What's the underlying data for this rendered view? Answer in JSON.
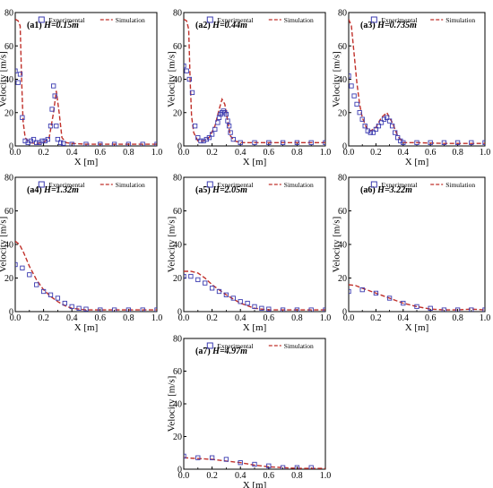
{
  "legend": {
    "exp_label": "Experimental",
    "sim_label": "Simulation"
  },
  "axis_text": {
    "xlabel": "X [m]",
    "ylabel": "Velocity [m/s]"
  },
  "colors": {
    "exp": "#3b3bb0",
    "sim": "#c0302a"
  },
  "chart_data": [
    {
      "type": "scatter",
      "panel": "(a1)",
      "height_label": "H=0.15m",
      "xlabel": "X [m]",
      "ylabel": "Velocity [m/s]",
      "xlim": [
        0,
        1
      ],
      "ylim": [
        0,
        80
      ],
      "xticks": [
        "0.0",
        "0.2",
        "0.4",
        "0.6",
        "0.8",
        "1.0"
      ],
      "yticks": [
        "0",
        "20",
        "40",
        "60",
        "80"
      ],
      "legend_position": "top-right",
      "series": [
        {
          "name": "Experimental",
          "x": [
            0.0,
            0.02,
            0.035,
            0.05,
            0.07,
            0.09,
            0.11,
            0.13,
            0.15,
            0.17,
            0.19,
            0.21,
            0.23,
            0.25,
            0.26,
            0.27,
            0.28,
            0.29,
            0.3,
            0.32,
            0.34,
            0.4,
            0.5,
            0.6,
            0.7,
            0.8,
            0.9,
            1.0
          ],
          "y": [
            45,
            38,
            43,
            17,
            3,
            2,
            3,
            4,
            2,
            2,
            3,
            3,
            4,
            12,
            22,
            36,
            30,
            12,
            4,
            2,
            1.5,
            1,
            1,
            1,
            1,
            1,
            1,
            1
          ]
        },
        {
          "name": "Simulation",
          "x": [
            0.0,
            0.02,
            0.035,
            0.045,
            0.055,
            0.07,
            0.1,
            0.15,
            0.2,
            0.24,
            0.27,
            0.29,
            0.31,
            0.33,
            0.36,
            0.4,
            0.5,
            0.7,
            1.0
          ],
          "y": [
            76,
            75,
            72,
            40,
            15,
            5,
            2,
            1.5,
            2,
            5,
            20,
            33,
            20,
            5,
            2,
            1.5,
            1,
            1,
            1
          ]
        }
      ]
    },
    {
      "type": "scatter",
      "panel": "(a2)",
      "height_label": "H=0.44m",
      "xlabel": "X [m]",
      "ylabel": "Velocity [m/s]",
      "xlim": [
        0,
        1
      ],
      "ylim": [
        0,
        80
      ],
      "xticks": [
        "0.0",
        "0.2",
        "0.4",
        "0.6",
        "0.8",
        "1.0"
      ],
      "yticks": [
        "0",
        "20",
        "40",
        "60",
        "80"
      ],
      "legend_position": "top-right",
      "series": [
        {
          "name": "Experimental",
          "x": [
            0.0,
            0.02,
            0.04,
            0.06,
            0.08,
            0.1,
            0.12,
            0.14,
            0.16,
            0.18,
            0.2,
            0.22,
            0.24,
            0.25,
            0.26,
            0.27,
            0.28,
            0.29,
            0.3,
            0.31,
            0.32,
            0.33,
            0.35,
            0.4,
            0.5,
            0.6,
            0.7,
            0.8,
            0.9,
            1.0
          ],
          "y": [
            48,
            45,
            40,
            32,
            12,
            5,
            3,
            3,
            4,
            5,
            7,
            10,
            14,
            17,
            19,
            20,
            21,
            20,
            19,
            15,
            12,
            8,
            4,
            2,
            2,
            2,
            2,
            2,
            2,
            2
          ]
        },
        {
          "name": "Simulation",
          "x": [
            0.0,
            0.02,
            0.035,
            0.045,
            0.055,
            0.07,
            0.1,
            0.14,
            0.18,
            0.22,
            0.25,
            0.27,
            0.29,
            0.31,
            0.33,
            0.36,
            0.4,
            0.5,
            0.7,
            1.0
          ],
          "y": [
            76,
            75,
            70,
            40,
            18,
            8,
            3,
            3,
            5,
            12,
            22,
            28,
            25,
            15,
            6,
            3,
            2,
            2,
            2,
            2
          ]
        }
      ]
    },
    {
      "type": "scatter",
      "panel": "(a3)",
      "height_label": "H=0.735m",
      "xlabel": "X [m]",
      "ylabel": "Velocity [m/s]",
      "xlim": [
        0,
        1
      ],
      "ylim": [
        0,
        80
      ],
      "xticks": [
        "0.0",
        "0.2",
        "0.4",
        "0.6",
        "0.8",
        "1.0"
      ],
      "yticks": [
        "0",
        "20",
        "40",
        "60",
        "80"
      ],
      "legend_position": "top-right",
      "series": [
        {
          "name": "Experimental",
          "x": [
            0.0,
            0.02,
            0.04,
            0.06,
            0.08,
            0.1,
            0.12,
            0.14,
            0.16,
            0.18,
            0.2,
            0.22,
            0.24,
            0.26,
            0.28,
            0.3,
            0.32,
            0.34,
            0.36,
            0.38,
            0.4,
            0.5,
            0.6,
            0.7,
            0.8,
            0.9,
            1.0
          ],
          "y": [
            42,
            36,
            30,
            25,
            20,
            16,
            12,
            9,
            8,
            8,
            10,
            12,
            14,
            16,
            17,
            15,
            12,
            8,
            5,
            3,
            2,
            2,
            2,
            2,
            2,
            2,
            2
          ]
        },
        {
          "name": "Simulation",
          "x": [
            0.0,
            0.02,
            0.04,
            0.06,
            0.08,
            0.1,
            0.13,
            0.16,
            0.2,
            0.24,
            0.28,
            0.32,
            0.36,
            0.4,
            0.5,
            0.7,
            1.0
          ],
          "y": [
            76,
            72,
            55,
            38,
            25,
            17,
            11,
            9,
            11,
            17,
            20,
            14,
            6,
            2,
            2,
            1.5,
            1.5
          ]
        }
      ]
    },
    {
      "type": "scatter",
      "panel": "(a4)",
      "height_label": "H=1.32m",
      "xlabel": "X [m]",
      "ylabel": "Velocity [m/s]",
      "xlim": [
        0,
        1
      ],
      "ylim": [
        0,
        80
      ],
      "xticks": [
        "0.0",
        "0.2",
        "0.4",
        "0.6",
        "0.8",
        "1.0"
      ],
      "yticks": [
        "0",
        "20",
        "40",
        "60",
        "80"
      ],
      "legend_position": "top-right",
      "series": [
        {
          "name": "Experimental",
          "x": [
            0.0,
            0.05,
            0.1,
            0.15,
            0.2,
            0.25,
            0.3,
            0.35,
            0.4,
            0.45,
            0.5,
            0.6,
            0.7,
            0.8,
            0.9,
            1.0
          ],
          "y": [
            28,
            26,
            22,
            16,
            12,
            10,
            8,
            5,
            3,
            2,
            1.5,
            1,
            1,
            1,
            1,
            1
          ]
        },
        {
          "name": "Simulation",
          "x": [
            0.0,
            0.03,
            0.06,
            0.1,
            0.15,
            0.2,
            0.25,
            0.3,
            0.35,
            0.4,
            0.45,
            0.5,
            0.6,
            0.8,
            1.0
          ],
          "y": [
            42,
            40,
            35,
            27,
            19,
            13,
            9,
            6,
            3.5,
            2,
            1.5,
            1,
            1,
            1,
            1
          ]
        }
      ]
    },
    {
      "type": "scatter",
      "panel": "(a5)",
      "height_label": "H=2.05m",
      "xlabel": "X [m]",
      "ylabel": "Velocity [m/s]",
      "xlim": [
        0,
        1
      ],
      "ylim": [
        0,
        80
      ],
      "xticks": [
        "0.0",
        "0.2",
        "0.4",
        "0.6",
        "0.8",
        "1.0"
      ],
      "yticks": [
        "0",
        "20",
        "40",
        "60",
        "80"
      ],
      "legend_position": "top-right",
      "series": [
        {
          "name": "Experimental",
          "x": [
            0.0,
            0.05,
            0.1,
            0.15,
            0.2,
            0.25,
            0.3,
            0.35,
            0.4,
            0.45,
            0.5,
            0.55,
            0.6,
            0.7,
            0.8,
            0.9,
            1.0
          ],
          "y": [
            21,
            21,
            19,
            17,
            14,
            12,
            10,
            8,
            6,
            5,
            3,
            2,
            1.5,
            1,
            1,
            1,
            1
          ]
        },
        {
          "name": "Simulation",
          "x": [
            0.0,
            0.05,
            0.1,
            0.15,
            0.2,
            0.3,
            0.4,
            0.5,
            0.6,
            0.7,
            0.8,
            0.9,
            1.0
          ],
          "y": [
            24,
            24,
            23,
            20,
            16,
            10,
            5,
            2,
            1,
            1,
            1,
            1,
            1
          ]
        }
      ]
    },
    {
      "type": "scatter",
      "panel": "(a6)",
      "height_label": "H=3.22m",
      "xlabel": "X [m]",
      "ylabel": "Velocity [m/s]",
      "xlim": [
        0,
        1
      ],
      "ylim": [
        0,
        80
      ],
      "xticks": [
        "0.0",
        "0.2",
        "0.4",
        "0.6",
        "0.8",
        "1.0"
      ],
      "yticks": [
        "0",
        "20",
        "40",
        "60",
        "80"
      ],
      "legend_position": "top-right",
      "series": [
        {
          "name": "Experimental",
          "x": [
            0.0,
            0.1,
            0.2,
            0.3,
            0.4,
            0.5,
            0.6,
            0.7,
            0.8,
            0.9,
            1.0
          ],
          "y": [
            12,
            13,
            11,
            8,
            5,
            3,
            2,
            1,
            1,
            1,
            1
          ]
        },
        {
          "name": "Simulation",
          "x": [
            0.0,
            0.05,
            0.1,
            0.2,
            0.3,
            0.4,
            0.5,
            0.6,
            0.7,
            0.8,
            0.9,
            1.0
          ],
          "y": [
            16,
            15.5,
            14,
            11,
            8,
            5,
            3,
            1.5,
            1,
            1,
            1.5,
            1
          ]
        }
      ]
    },
    {
      "type": "scatter",
      "panel": "(a7)",
      "height_label": "H=4.97m",
      "xlabel": "X [m]",
      "ylabel": "Velocity [m/s]",
      "xlim": [
        0,
        1
      ],
      "ylim": [
        0,
        80
      ],
      "xticks": [
        "0.0",
        "0.2",
        "0.4",
        "0.6",
        "0.8",
        "1.0"
      ],
      "yticks": [
        "0",
        "20",
        "40",
        "60",
        "80"
      ],
      "legend_position": "top-right",
      "series": [
        {
          "name": "Experimental",
          "x": [
            0.0,
            0.1,
            0.2,
            0.3,
            0.4,
            0.5,
            0.6,
            0.7,
            0.8,
            0.9
          ],
          "y": [
            8,
            7,
            7,
            6,
            4,
            3,
            2,
            1,
            1,
            1
          ]
        },
        {
          "name": "Simulation",
          "x": [
            0.0,
            0.1,
            0.2,
            0.3,
            0.4,
            0.5,
            0.6,
            0.7,
            0.8,
            0.9,
            1.0
          ],
          "y": [
            7,
            6.5,
            6,
            5,
            4,
            2.5,
            1.5,
            1,
            0.5,
            0.5,
            0.5
          ]
        }
      ]
    }
  ]
}
